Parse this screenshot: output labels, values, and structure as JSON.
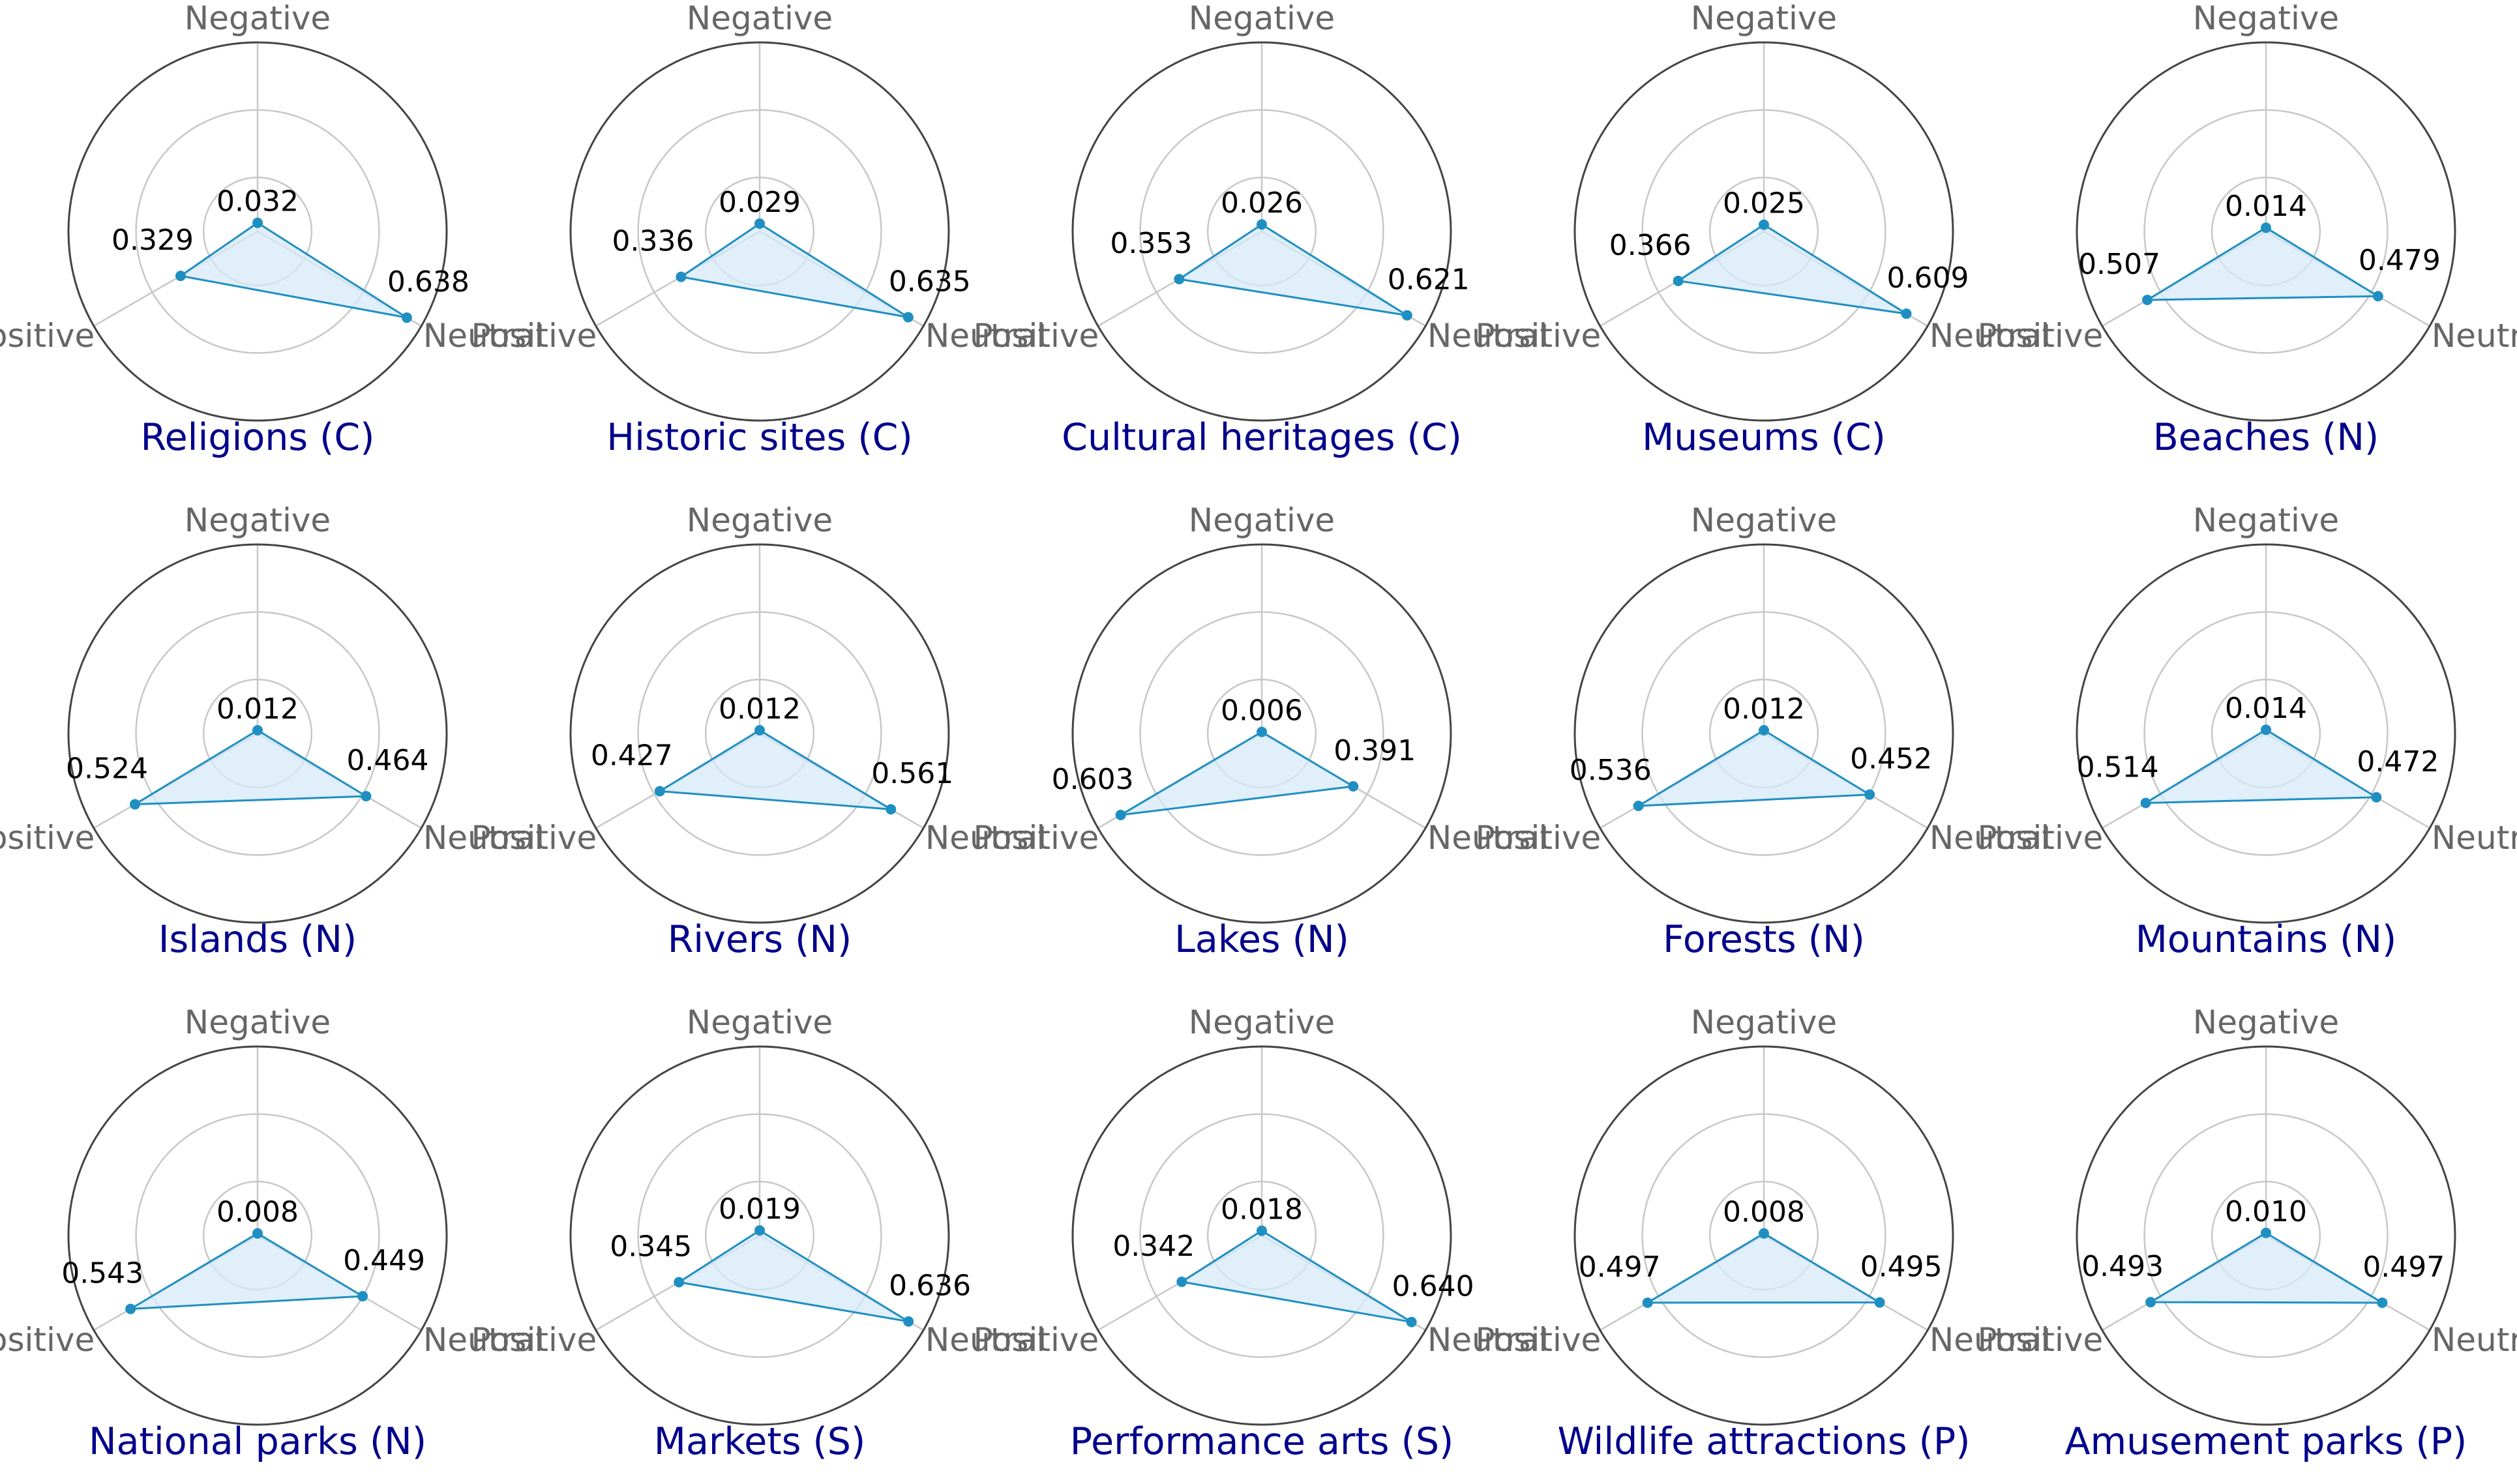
{
  "colors": {
    "line": "#1f8fc2",
    "fill": "#d6eaf7",
    "title": "#00008b",
    "axis_label": "#666666",
    "grid": "#c8c8c8",
    "outer_ring": "#444444"
  },
  "chart_data": [
    {
      "type": "radar",
      "title": "Religions (C)",
      "axes": [
        "Negative",
        "Neutral",
        "Positive"
      ],
      "values": [
        0.032,
        0.638,
        0.329
      ],
      "rlim": [
        0,
        0.7
      ]
    },
    {
      "type": "radar",
      "title": "Historic sites (C)",
      "axes": [
        "Negative",
        "Neutral",
        "Positive"
      ],
      "values": [
        0.029,
        0.635,
        0.336
      ],
      "rlim": [
        0,
        0.7
      ]
    },
    {
      "type": "radar",
      "title": "Cultural heritages (C)",
      "axes": [
        "Negative",
        "Neutral",
        "Positive"
      ],
      "values": [
        0.026,
        0.621,
        0.353
      ],
      "rlim": [
        0,
        0.7
      ]
    },
    {
      "type": "radar",
      "title": "Museums (C)",
      "axes": [
        "Negative",
        "Neutral",
        "Positive"
      ],
      "values": [
        0.025,
        0.609,
        0.366
      ],
      "rlim": [
        0,
        0.7
      ]
    },
    {
      "type": "radar",
      "title": "Beaches (N)",
      "axes": [
        "Negative",
        "Neutral",
        "Positive"
      ],
      "values": [
        0.014,
        0.479,
        0.507
      ],
      "rlim": [
        0,
        0.7
      ]
    },
    {
      "type": "radar",
      "title": "Islands (N)",
      "axes": [
        "Negative",
        "Neutral",
        "Positive"
      ],
      "values": [
        0.012,
        0.464,
        0.524
      ],
      "rlim": [
        0,
        0.7
      ]
    },
    {
      "type": "radar",
      "title": "Rivers (N)",
      "axes": [
        "Negative",
        "Neutral",
        "Positive"
      ],
      "values": [
        0.012,
        0.561,
        0.427
      ],
      "rlim": [
        0,
        0.7
      ]
    },
    {
      "type": "radar",
      "title": "Lakes (N)",
      "axes": [
        "Negative",
        "Neutral",
        "Positive"
      ],
      "values": [
        0.006,
        0.391,
        0.603
      ],
      "rlim": [
        0,
        0.7
      ]
    },
    {
      "type": "radar",
      "title": "Forests (N)",
      "axes": [
        "Negative",
        "Neutral",
        "Positive"
      ],
      "values": [
        0.012,
        0.452,
        0.536
      ],
      "rlim": [
        0,
        0.7
      ]
    },
    {
      "type": "radar",
      "title": "Mountains (N)",
      "axes": [
        "Negative",
        "Neutral",
        "Positive"
      ],
      "values": [
        0.014,
        0.472,
        0.514
      ],
      "rlim": [
        0,
        0.7
      ]
    },
    {
      "type": "radar",
      "title": "National parks (N)",
      "axes": [
        "Negative",
        "Neutral",
        "Positive"
      ],
      "values": [
        0.008,
        0.449,
        0.543
      ],
      "rlim": [
        0,
        0.7
      ]
    },
    {
      "type": "radar",
      "title": "Markets (S)",
      "axes": [
        "Negative",
        "Neutral",
        "Positive"
      ],
      "values": [
        0.019,
        0.636,
        0.345
      ],
      "rlim": [
        0,
        0.7
      ]
    },
    {
      "type": "radar",
      "title": "Performance arts (S)",
      "axes": [
        "Negative",
        "Neutral",
        "Positive"
      ],
      "values": [
        0.018,
        0.64,
        0.342
      ],
      "rlim": [
        0,
        0.7
      ]
    },
    {
      "type": "radar",
      "title": "Wildlife attractions (P)",
      "axes": [
        "Negative",
        "Neutral",
        "Positive"
      ],
      "values": [
        0.008,
        0.495,
        0.497
      ],
      "rlim": [
        0,
        0.7
      ]
    },
    {
      "type": "radar",
      "title": "Amusement parks (P)",
      "axes": [
        "Negative",
        "Neutral",
        "Positive"
      ],
      "values": [
        0.01,
        0.497,
        0.493
      ],
      "rlim": [
        0,
        0.7
      ]
    }
  ]
}
